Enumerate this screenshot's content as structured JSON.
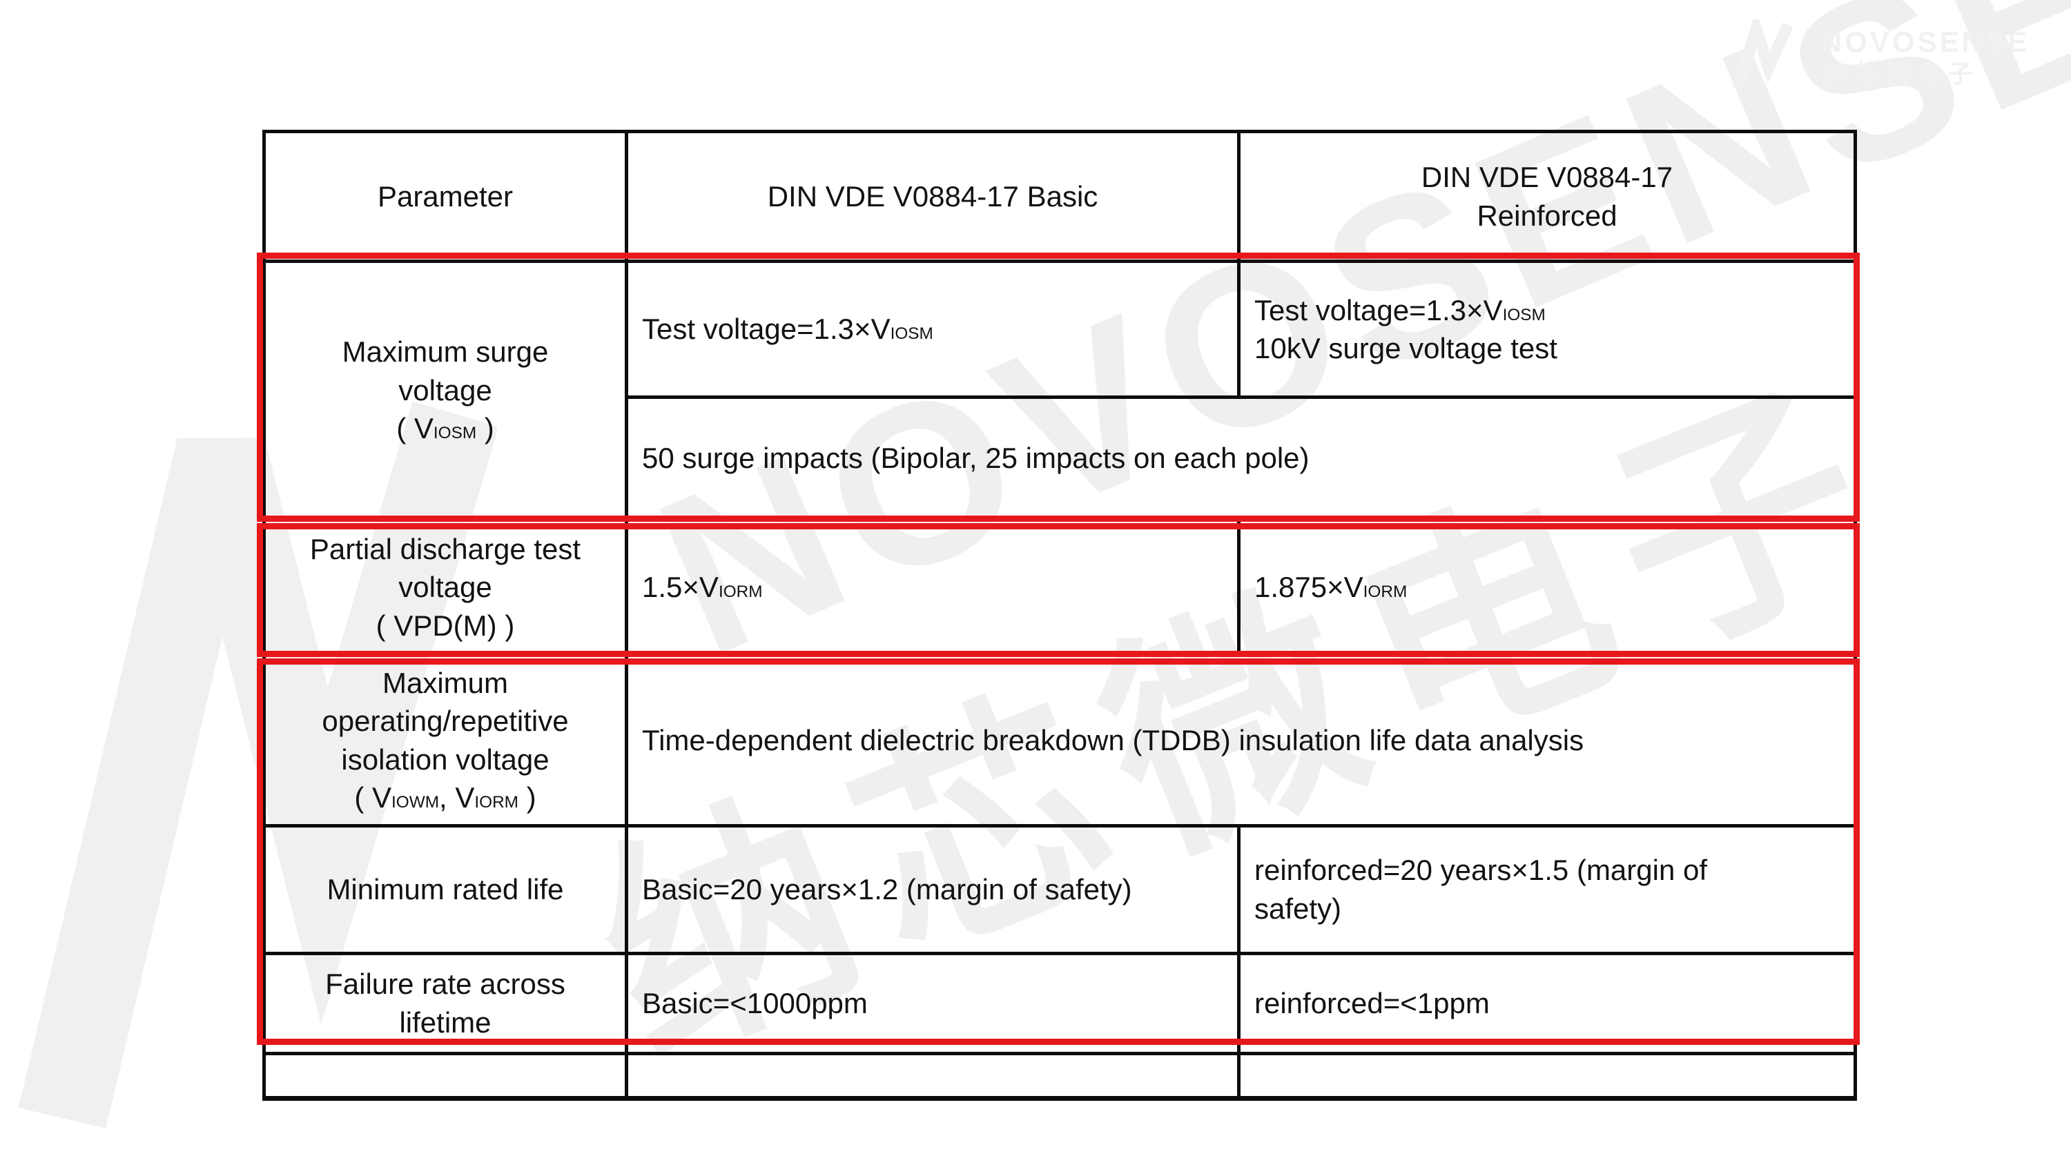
{
  "brand": {
    "name_en": "NOVOSENSE",
    "name_cn": "纳芯微电子"
  },
  "watermark": {
    "text_en": "NOVOSENSE",
    "text_cn": "纳芯微电子"
  },
  "colors": {
    "header_bg": "#4a5695",
    "header_text": "#ffffff",
    "table_border": "#0c0c0c",
    "highlight_red": "#e7181b",
    "body_text": "#121212",
    "watermark_gray": "#f0efee",
    "page_bg": "#ffffff"
  },
  "table": {
    "columns": {
      "parameter": "Parameter",
      "basic": "DIN VDE V0884-17 Basic",
      "reinforced": "DIN VDE V0884-17\nReinforced"
    },
    "rows": {
      "surge": {
        "param": "Maximum surge\nvoltage\n( V_{IOSM} )",
        "basic": "Test voltage=1.3×V_{IOSM}",
        "reinforced": "Test voltage=1.3×V_{IOSM}\n10kV surge voltage test",
        "merged_note": "50 surge impacts (Bipolar, 25 impacts on each pole)"
      },
      "partial_discharge": {
        "param": "Partial discharge test\nvoltage\n( VPD(M) )",
        "basic": "1.5×V_{IORM}",
        "reinforced": "1.875×V_{IORM}"
      },
      "operating_voltage": {
        "param": "Maximum\noperating/repetitive\nisolation voltage\n( V_{IOWM}, V_{IORM} )",
        "merged": "Time-dependent dielectric breakdown (TDDB) insulation life data analysis"
      },
      "rated_life": {
        "param": "Minimum rated life",
        "basic": "Basic=20 years×1.2 (margin of safety)",
        "reinforced": "reinforced=20 years×1.5 (margin of\nsafety)"
      },
      "failure_rate": {
        "param": "Failure rate across\nlifetime",
        "basic": "Basic=<1000ppm",
        "reinforced": "reinforced=<1ppm"
      }
    }
  }
}
